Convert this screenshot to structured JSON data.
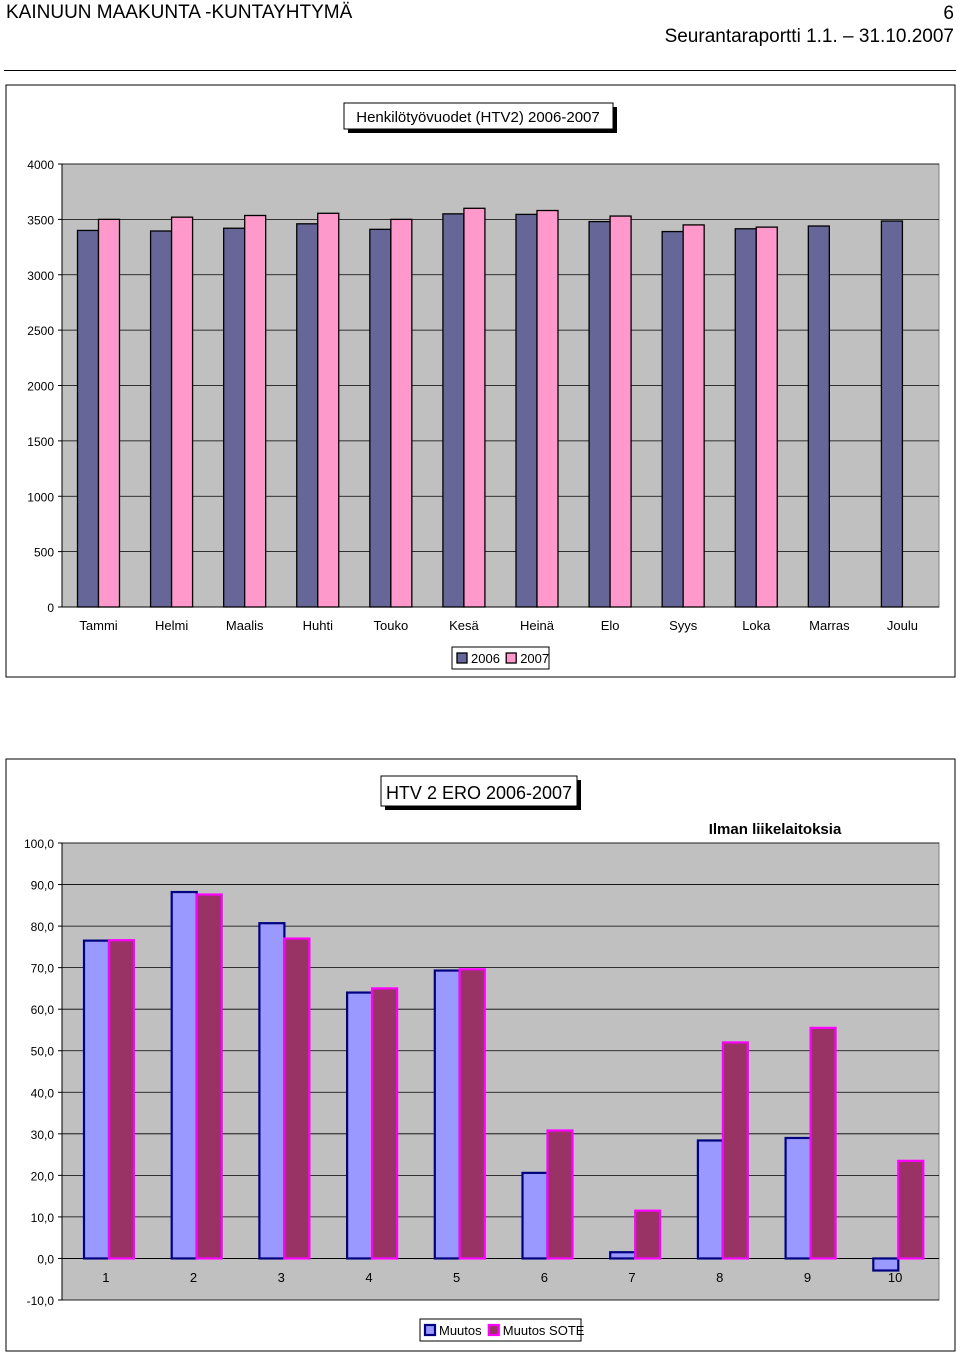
{
  "header": {
    "org": "KAINUUN MAAKUNTA -KUNTAYHTYMÄ",
    "page": "6",
    "report": "Seurantaraportti 1.1. – 31.10.2007"
  },
  "chart_data": [
    {
      "type": "bar",
      "title": "Henkilötyövuodet (HTV2) 2006-2007",
      "categories": [
        "Tammi",
        "Helmi",
        "Maalis",
        "Huhti",
        "Touko",
        "Kesä",
        "Heinä",
        "Elo",
        "Syys",
        "Loka",
        "Marras",
        "Joulu"
      ],
      "series": [
        {
          "name": "2006",
          "color": "#666699",
          "values": [
            3400,
            3395,
            3420,
            3460,
            3410,
            3550,
            3545,
            3480,
            3390,
            3415,
            3440,
            3485
          ]
        },
        {
          "name": "2007",
          "color": "#FF99CC",
          "values": [
            3500,
            3520,
            3535,
            3555,
            3500,
            3600,
            3580,
            3530,
            3450,
            3430,
            null,
            null
          ]
        }
      ],
      "ylim": [
        0,
        4000
      ],
      "yticks": [
        "0",
        "500",
        "1000",
        "1500",
        "2000",
        "2500",
        "3000",
        "3500",
        "4000"
      ],
      "grid": true,
      "legend": "bottom"
    },
    {
      "type": "bar",
      "title": "HTV 2 ERO 2006-2007",
      "subtitle": "Ilman liikelaitoksia",
      "categories": [
        "1",
        "2",
        "3",
        "4",
        "5",
        "6",
        "7",
        "8",
        "9",
        "10"
      ],
      "series": [
        {
          "name": "Muutos",
          "color": "#9999FF",
          "edge": "#000080",
          "values": [
            76.5,
            88.2,
            80.7,
            64.0,
            69.3,
            20.6,
            1.5,
            28.4,
            29.0,
            -2.9
          ]
        },
        {
          "name": "Muutos SOTE",
          "color": "#993366",
          "edge": "#FF00FF",
          "values": [
            76.6,
            87.6,
            77.0,
            65.0,
            69.6,
            30.8,
            11.5,
            52.0,
            55.5,
            23.5
          ]
        }
      ],
      "ylim": [
        -10,
        100
      ],
      "yticks": [
        "-10,0",
        "0,0",
        "10,0",
        "20,0",
        "30,0",
        "40,0",
        "50,0",
        "60,0",
        "70,0",
        "80,0",
        "90,0",
        "100,0"
      ],
      "grid": true,
      "legend": "bottom"
    }
  ]
}
